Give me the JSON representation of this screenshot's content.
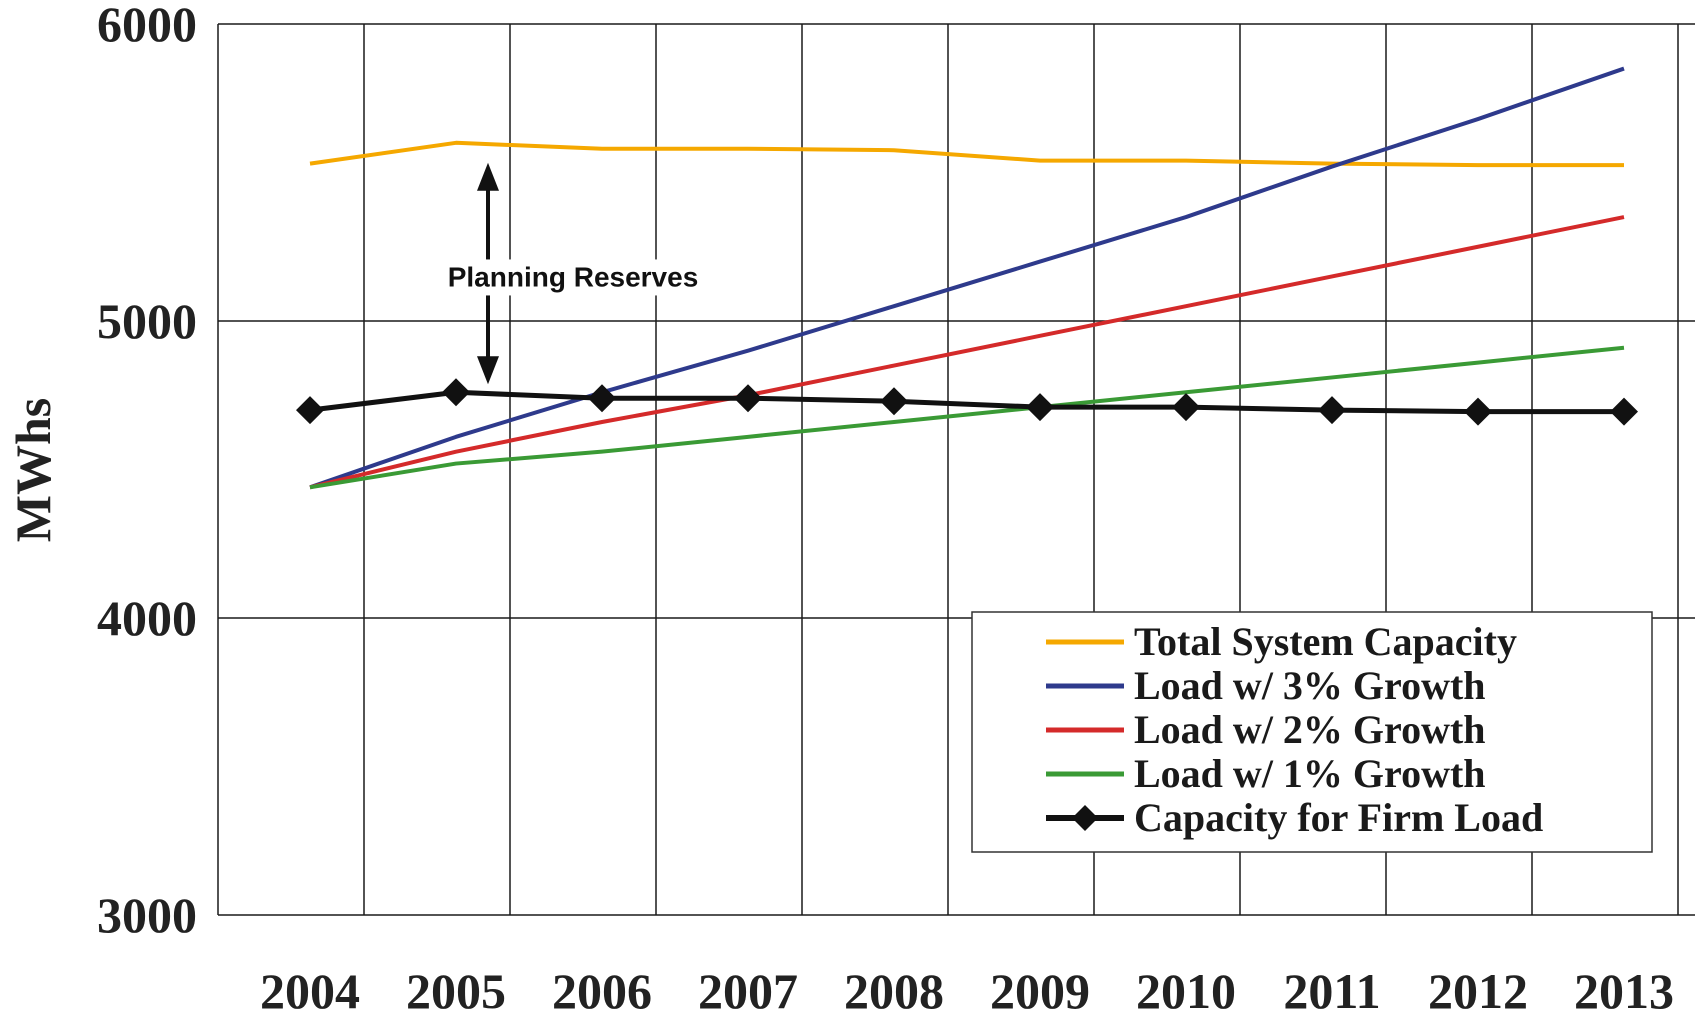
{
  "chart_data": {
    "type": "line",
    "title": "",
    "xlabel": "",
    "ylabel": "MWhs",
    "categories": [
      "2004",
      "2005",
      "2006",
      "2007",
      "2008",
      "2009",
      "2010",
      "2011",
      "2012",
      "2013"
    ],
    "ylim": [
      3000,
      6000
    ],
    "yticks": [
      "6000",
      "5000",
      "4000",
      "3000"
    ],
    "grid": true,
    "legend_position": "bottom-right",
    "series": [
      {
        "name": "Total System Capacity",
        "color": "#F5A800",
        "marker": "none",
        "values": [
          5530,
          5600,
          5580,
          5580,
          5575,
          5540,
          5540,
          5530,
          5525,
          5525
        ]
      },
      {
        "name": "Load w/ 3% Growth",
        "color": "#2E3A8C",
        "marker": "none",
        "values": [
          4440,
          4610,
          4760,
          4900,
          5050,
          5200,
          5350,
          5520,
          5680,
          5850
        ]
      },
      {
        "name": "Load w/ 2% Growth",
        "color": "#D42A2A",
        "marker": "none",
        "values": [
          4440,
          4560,
          4660,
          4750,
          4850,
          4950,
          5050,
          5150,
          5250,
          5350
        ]
      },
      {
        "name": "Load w/ 1% Growth",
        "color": "#3A9A35",
        "marker": "none",
        "values": [
          4440,
          4520,
          4560,
          4610,
          4660,
          4710,
          4760,
          4810,
          4860,
          4910
        ]
      },
      {
        "name": "Capacity for Firm Load",
        "color": "#111111",
        "marker": "diamond",
        "values": [
          4700,
          4760,
          4740,
          4740,
          4730,
          4710,
          4710,
          4700,
          4695,
          4695
        ]
      }
    ],
    "annotations": [
      {
        "text": "Planning Reserves",
        "x": "2005",
        "from": 5600,
        "to": 4760
      }
    ]
  }
}
